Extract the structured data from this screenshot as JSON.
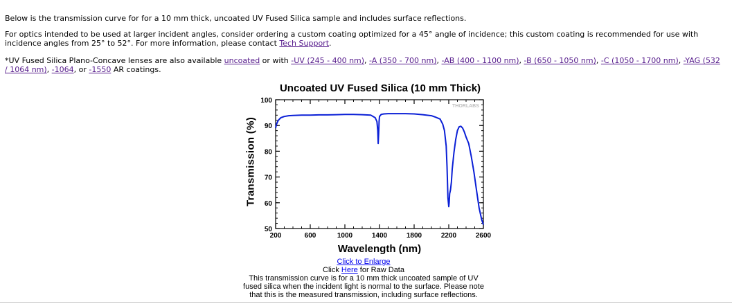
{
  "intro": {
    "line1": "Below is the transmission curve for for a 10 mm thick, uncoated UV Fused Silica sample and includes surface reflections.",
    "line2_text": "For optics intended to be used at larger incident angles, consider ordering a custom coating optimized for a 45° angle of incidence; this custom coating is recommended for use with incidence angles from 25° to 52°. For more information, please contact ",
    "tech_support_link": "Tech Support",
    "line2_end": ".",
    "line3_text": "*UV Fused Silica Plano-Concave lenses are also available ",
    "coating_links": [
      "uncoated",
      "-UV (245 - 400 nm)",
      "-A (350 - 700 nm)",
      "-AB (400 - 1100 nm)",
      "-B (650 - 1050 nm)",
      "-C (1050 - 1700 nm)",
      "-YAG (532 / 1064 nm)",
      "-1064",
      "-1550"
    ],
    "sep_or_with": " or with ",
    "sep_comma": ", ",
    "sep_or": ", or ",
    "line3_end": " AR coatings."
  },
  "chart_data": {
    "type": "line",
    "title": "Uncoated UV Fused Silica (10 mm Thick)",
    "xlabel": "Wavelength (nm)",
    "ylabel": "Transmission (%)",
    "xlim": [
      200,
      2600
    ],
    "ylim": [
      50,
      100
    ],
    "xticks": [
      200,
      600,
      1000,
      1400,
      1800,
      2200,
      2600
    ],
    "yticks": [
      50,
      60,
      70,
      80,
      90,
      100
    ],
    "watermark": "THORLABS",
    "line_color": "#0a1fd6",
    "series": [
      {
        "x": [
          200,
          210,
          230,
          260,
          300,
          350,
          400,
          500,
          600,
          700,
          800,
          900,
          1000,
          1100,
          1200,
          1300,
          1350,
          1370,
          1380,
          1385,
          1390,
          1395,
          1400,
          1420,
          1450,
          1500,
          1600,
          1700,
          1800,
          1900,
          2000,
          2050,
          2100,
          2130,
          2150,
          2170,
          2180,
          2190,
          2200,
          2205,
          2210,
          2220,
          2230,
          2240,
          2260,
          2280,
          2300,
          2320,
          2340,
          2360,
          2380,
          2400,
          2430,
          2460,
          2490,
          2520,
          2550,
          2580,
          2600
        ],
        "y": [
          89.0,
          90.5,
          92.0,
          93.0,
          93.5,
          93.8,
          93.9,
          94.0,
          94.0,
          94.1,
          94.1,
          94.2,
          94.3,
          94.3,
          94.2,
          94.0,
          93.0,
          91.5,
          88.0,
          83.0,
          87.0,
          91.5,
          93.5,
          94.3,
          94.5,
          94.6,
          94.6,
          94.6,
          94.5,
          94.2,
          93.8,
          93.2,
          92.5,
          90.5,
          88.0,
          82.0,
          74.0,
          62.0,
          58.5,
          60.0,
          63.5,
          65.0,
          68.0,
          73.0,
          79.5,
          84.5,
          88.0,
          89.5,
          89.7,
          89.0,
          87.5,
          85.5,
          83.0,
          78.0,
          72.0,
          65.0,
          58.0,
          53.5,
          51.5
        ]
      }
    ]
  },
  "caption": {
    "enlarge_link": "Click to Enlarge",
    "raw_prefix": "Click ",
    "raw_link": "Here",
    "raw_suffix": " for Raw Data",
    "line1": "This transmission curve is for a 10 mm thick uncoated sample of UV",
    "line2": "fused silica when the incident light is normal to the surface. Please note",
    "line3": "that this is the measured transmission, including surface reflections."
  }
}
